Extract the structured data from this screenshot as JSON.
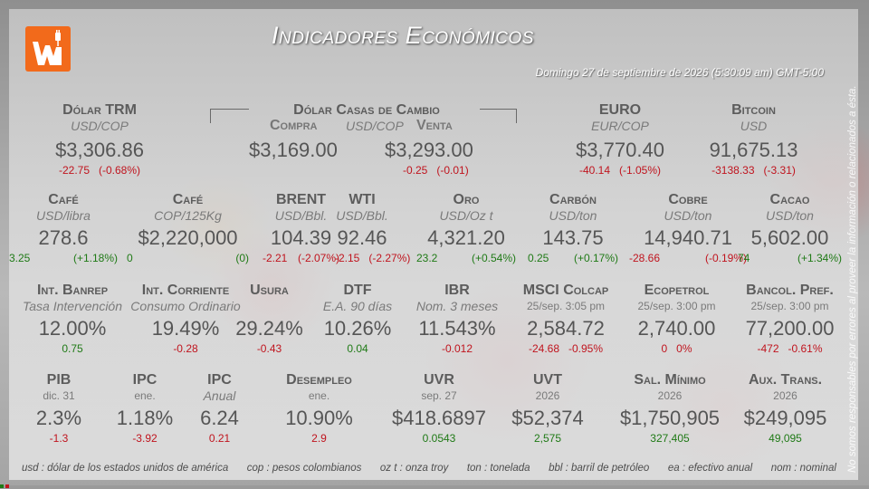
{
  "header": {
    "title": "Indicadores Económicos",
    "date": "Domingo 27 de septiembre de 2026 (5:30:09 am) GMT-5:00"
  },
  "row1": {
    "trm": {
      "name": "Dólar TRM",
      "unit": "USD/COP",
      "value": "$3,306.86",
      "chg": "-22.75",
      "pct": "(-0.68%)"
    },
    "casas": {
      "name": "Dólar Casas de Cambio",
      "compra_label": "Compra",
      "unit": "USD/COP",
      "venta_label": "Venta",
      "compra_value": "$3,169.00",
      "venta_value": "$3,293.00",
      "chg": "-0.25",
      "pct": "(-0.01)"
    },
    "euro": {
      "name": "EURO",
      "unit": "EUR/COP",
      "value": "$3,770.40",
      "chg": "-40.14",
      "pct": "(-1.05%)"
    },
    "bitcoin": {
      "name": "Bitcoin",
      "unit": "USD",
      "value": "91,675.13",
      "chg": "-3138.33",
      "pct": "(-3.31)"
    }
  },
  "row2": [
    {
      "name": "Café",
      "unit": "USD/libra",
      "value": "278.6",
      "chg": "3.25",
      "pct": "(+1.18%)",
      "dir": "pos"
    },
    {
      "name": "Café",
      "unit": "COP/125Kg",
      "value": "$2,220,000",
      "chg": "0",
      "pct": "(0)",
      "dir": "pos"
    },
    {
      "name": "BRENT",
      "unit": "USD/Bbl.",
      "value": "104.39",
      "chg": "-2.21",
      "pct": "(-2.07%)",
      "dir": "neg"
    },
    {
      "name": "WTI",
      "unit": "USD/Bbl.",
      "value": "92.46",
      "chg": "-2.15",
      "pct": "(-2.27%)",
      "dir": "neg"
    },
    {
      "name": "Oro",
      "unit": "USD/Oz t",
      "value": "4,321.20",
      "chg": "23.2",
      "pct": "(+0.54%)",
      "dir": "pos"
    },
    {
      "name": "Carbón",
      "unit": "USD/ton",
      "value": "143.75",
      "chg": "0.25",
      "pct": "(+0.17%)",
      "dir": "pos"
    },
    {
      "name": "Cobre",
      "unit": "USD/ton",
      "value": "14,940.71",
      "chg": "-28.66",
      "pct": "(-0.19%)",
      "dir": "neg"
    },
    {
      "name": "Cacao",
      "unit": "USD/ton",
      "value": "5,602.00",
      "chg": "74",
      "pct": "(+1.34%)",
      "dir": "pos"
    }
  ],
  "row3": [
    {
      "name": "Int. Banrep",
      "unit": "Tasa Intervención",
      "value": "12.00%",
      "chg": "0.75",
      "pct": "",
      "dir": "pos"
    },
    {
      "name": "Int. Corriente",
      "unit": "Consumo Ordinario",
      "value": "19.49%",
      "chg": "-0.28",
      "pct": "",
      "dir": "neg"
    },
    {
      "name": "Usura",
      "unit": "",
      "value": "29.24%",
      "chg": "-0.43",
      "pct": "",
      "dir": "neg"
    },
    {
      "name": "DTF",
      "unit": "E.A. 90 días",
      "value": "10.26%",
      "chg": "0.04",
      "pct": "",
      "dir": "pos"
    },
    {
      "name": "IBR",
      "unit": "Nom. 3 meses",
      "value": "11.543%",
      "chg": "-0.012",
      "pct": "",
      "dir": "neg"
    },
    {
      "name": "MSCI Colcap",
      "unit": "25/sep. 3:05 pm",
      "value": "2,584.72",
      "chg": "-24.68",
      "pct": "-0.95%",
      "dir": "neg"
    },
    {
      "name": "Ecopetrol",
      "unit": "25/sep. 3:00 pm",
      "value": "2,740.00",
      "chg": "0",
      "pct": "0%",
      "dir": "neg"
    },
    {
      "name": "Bancol. Pref.",
      "unit": "25/sep. 3:00 pm",
      "value": "77,200.00",
      "chg": "-472",
      "pct": "-0.61%",
      "dir": "neg"
    }
  ],
  "row4": [
    {
      "name": "PIB",
      "unit": "dic. 31",
      "value": "2.3%",
      "chg": "-1.3",
      "dir": "neg"
    },
    {
      "name": "IPC",
      "unit": "ene.",
      "value": "1.18%",
      "chg": "-3.92",
      "dir": "neg"
    },
    {
      "name": "IPC",
      "unit": "Anual",
      "value": "6.24",
      "chg": "0.21",
      "dir": "neg"
    },
    {
      "name": "Desempleo",
      "unit": "ene.",
      "value": "10.90%",
      "chg": "2.9",
      "dir": "neg"
    },
    {
      "name": "UVR",
      "unit": "sep. 27",
      "value": "$418.6897",
      "chg": "0.0543",
      "dir": "pos"
    },
    {
      "name": "UVT",
      "unit": "2026",
      "value": "$52,374",
      "chg": "2,575",
      "dir": "pos"
    },
    {
      "name": "Sal. Mínimo",
      "unit": "2026",
      "value": "$1,750,905",
      "chg": "327,405",
      "dir": "pos"
    },
    {
      "name": "Aux. Trans.",
      "unit": "2026",
      "value": "$249,095",
      "chg": "49,095",
      "dir": "pos"
    }
  ],
  "footer": {
    "usd": "usd : dólar de los estados unidos de américa",
    "cop": "cop : pesos colombianos",
    "oz": "oz t : onza troy",
    "ton": "ton : tonelada",
    "bbl": "bbl : barril de petróleo",
    "ea": "ea : efectivo anual",
    "nom": "nom : nominal"
  },
  "disclaimer": "No somos responsables por errores al proveer la información o relacionados a ésta.",
  "colors": {
    "brand": "#f26a1b",
    "negative": "#c0141e",
    "positive": "#1f7a16"
  }
}
